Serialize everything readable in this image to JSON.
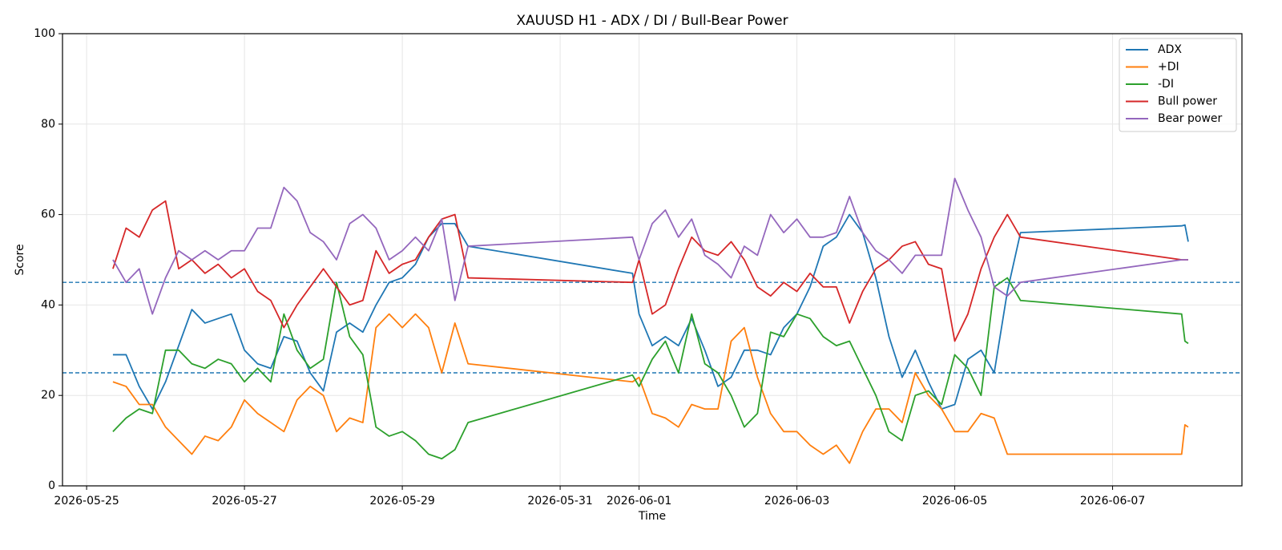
{
  "chart_data": {
    "type": "line",
    "title": "XAUUSD H1 - ADX / DI / Bull-Bear Power",
    "xlabel": "Time",
    "ylabel": "Score",
    "x": [
      "2026-05-25 08:00",
      "2026-05-25 12:00",
      "2026-05-25 16:00",
      "2026-05-25 20:00",
      "2026-05-26 00:00",
      "2026-05-26 04:00",
      "2026-05-26 08:00",
      "2026-05-26 12:00",
      "2026-05-26 16:00",
      "2026-05-26 20:00",
      "2026-05-27 00:00",
      "2026-05-27 04:00",
      "2026-05-27 08:00",
      "2026-05-27 12:00",
      "2026-05-27 16:00",
      "2026-05-27 20:00",
      "2026-05-28 00:00",
      "2026-05-28 04:00",
      "2026-05-28 08:00",
      "2026-05-28 12:00",
      "2026-05-28 16:00",
      "2026-05-28 20:00",
      "2026-05-29 00:00",
      "2026-05-29 04:00",
      "2026-05-29 08:00",
      "2026-05-29 12:00",
      "2026-05-29 16:00",
      "2026-05-29 20:00",
      "2026-05-31 22:00",
      "2026-06-01 00:00",
      "2026-06-01 04:00",
      "2026-06-01 08:00",
      "2026-06-01 12:00",
      "2026-06-01 16:00",
      "2026-06-01 20:00",
      "2026-06-02 00:00",
      "2026-06-02 04:00",
      "2026-06-02 08:00",
      "2026-06-02 12:00",
      "2026-06-02 16:00",
      "2026-06-02 20:00",
      "2026-06-03 00:00",
      "2026-06-03 04:00",
      "2026-06-03 08:00",
      "2026-06-03 12:00",
      "2026-06-03 16:00",
      "2026-06-03 20:00",
      "2026-06-04 00:00",
      "2026-06-04 04:00",
      "2026-06-04 08:00",
      "2026-06-04 12:00",
      "2026-06-04 16:00",
      "2026-06-04 20:00",
      "2026-06-05 00:00",
      "2026-06-05 04:00",
      "2026-06-05 08:00",
      "2026-06-05 12:00",
      "2026-06-05 16:00",
      "2026-06-05 20:00",
      "2026-06-07 21:00",
      "2026-06-07 22:00",
      "2026-06-07 23:00"
    ],
    "series": [
      {
        "name": "ADX",
        "color": "#1f77b4",
        "values": [
          29,
          29,
          22,
          17,
          23,
          31,
          39,
          36,
          37,
          38,
          30,
          27,
          26,
          33,
          32,
          25,
          21,
          34,
          36,
          34,
          40,
          45,
          46,
          49,
          55,
          58,
          58,
          53,
          47,
          38,
          31,
          33,
          31,
          37,
          30,
          22,
          24,
          30,
          30,
          29,
          35,
          38,
          44,
          53,
          55,
          60,
          56,
          46,
          33,
          24,
          30,
          23,
          17,
          18,
          28,
          30,
          25,
          43,
          56,
          57.5,
          57.7,
          54
        ]
      },
      {
        "name": "+DI",
        "color": "#ff7f0e",
        "values": [
          23,
          22,
          18,
          18,
          13,
          10,
          7,
          11,
          10,
          13,
          19,
          16,
          14,
          12,
          19,
          22,
          20,
          12,
          15,
          14,
          35,
          38,
          35,
          38,
          35,
          25,
          36,
          27,
          23,
          24,
          16,
          15,
          13,
          18,
          17,
          17,
          32,
          35,
          24,
          16,
          12,
          12,
          9,
          7,
          9,
          5,
          12,
          17,
          17,
          14,
          25,
          20,
          17,
          12,
          12,
          16,
          15,
          7,
          7,
          7,
          13.5,
          13
        ]
      },
      {
        "name": "-DI",
        "color": "#2ca02c",
        "values": [
          12,
          15,
          17,
          16,
          30,
          30,
          27,
          26,
          28,
          27,
          23,
          26,
          23,
          38,
          30,
          26,
          28,
          45,
          33,
          29,
          13,
          11,
          12,
          10,
          7,
          6,
          8,
          14,
          24.5,
          22,
          28,
          32,
          25,
          38,
          27,
          25,
          20,
          13,
          16,
          34,
          33,
          38,
          37,
          33,
          31,
          32,
          26,
          20,
          12,
          10,
          20,
          21,
          18,
          29,
          26,
          20,
          44,
          46,
          41,
          38,
          32,
          31.5
        ]
      },
      {
        "name": "Bull power",
        "color": "#d62728",
        "values": [
          48,
          57,
          55,
          61,
          63,
          48,
          50,
          47,
          49,
          46,
          48,
          43,
          41,
          35,
          40,
          44,
          48,
          44,
          40,
          41,
          52,
          47,
          49,
          50,
          55,
          59,
          60,
          46,
          45,
          50,
          38,
          40,
          48,
          55,
          52,
          51,
          54,
          50,
          44,
          42,
          45,
          43,
          47,
          44,
          44,
          36,
          43,
          48,
          50,
          53,
          54,
          49,
          48,
          32,
          38,
          48,
          55,
          60,
          55,
          50,
          50,
          50
        ]
      },
      {
        "name": "Bear power",
        "color": "#9467bd",
        "values": [
          50,
          45,
          48,
          38,
          46,
          52,
          50,
          52,
          50,
          52,
          52,
          57,
          57,
          66,
          63,
          56,
          54,
          50,
          58,
          60,
          57,
          50,
          52,
          55,
          52,
          59,
          41,
          53,
          55,
          50,
          58,
          61,
          55,
          59,
          51,
          49,
          46,
          53,
          51,
          60,
          56,
          59,
          55,
          55,
          56,
          64,
          56,
          52,
          50,
          47,
          51,
          51,
          51,
          68,
          61,
          55,
          44,
          42,
          45,
          50,
          50,
          50
        ]
      }
    ],
    "hlines": [
      25,
      45
    ],
    "hline_color": "#1f77b4",
    "xlim": [
      "2026-05-24 16:40",
      "2026-06-08 15:20"
    ],
    "xticks": [
      "2026-05-25",
      "2026-05-27",
      "2026-05-29",
      "2026-05-31",
      "2026-06-01",
      "2026-06-03",
      "2026-06-05",
      "2026-06-07"
    ],
    "ylim": [
      0,
      100
    ],
    "yticks": [
      0,
      20,
      40,
      60,
      80,
      100
    ],
    "grid": true,
    "legend": "upper-right"
  }
}
